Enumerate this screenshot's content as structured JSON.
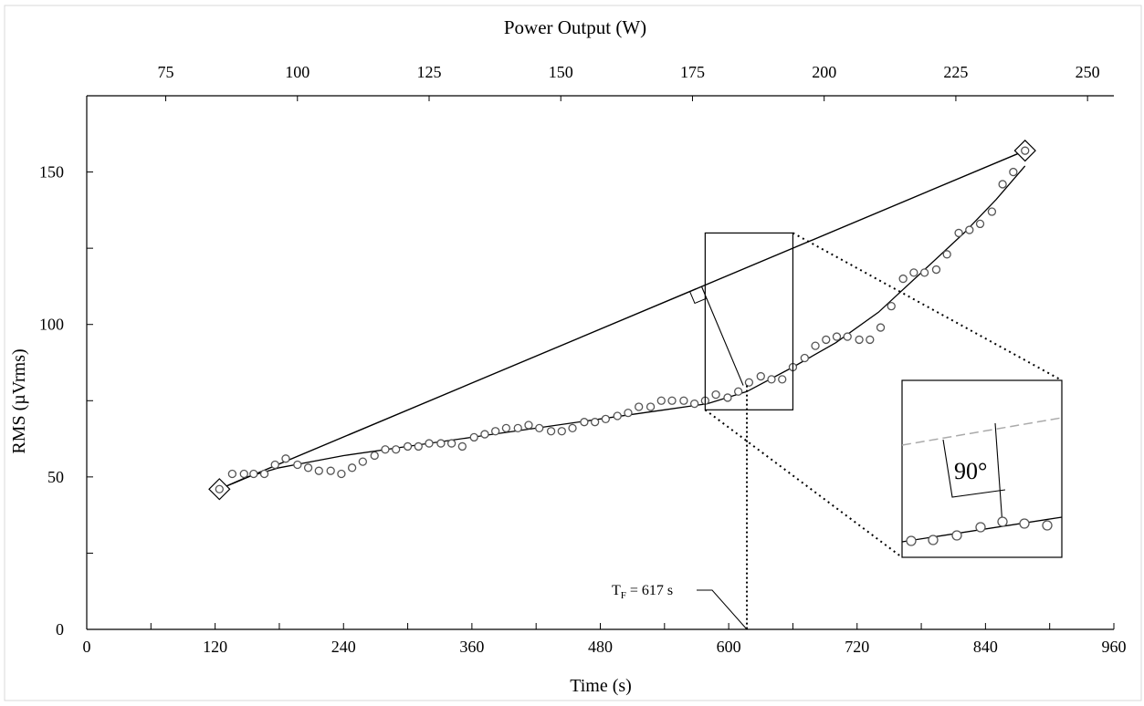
{
  "chart_data": {
    "type": "scatter",
    "xlabel": "Time (s)",
    "ylabel": "RMS (µVrms)",
    "x2label": "Power Output (W)",
    "xlim": [
      0,
      960
    ],
    "ylim": [
      0,
      175
    ],
    "x2lim": [
      60,
      255
    ],
    "xticks": [
      0,
      120,
      240,
      360,
      480,
      600,
      720,
      840,
      960
    ],
    "xticks_minor": [
      60,
      180,
      300,
      420,
      540,
      660,
      780,
      900
    ],
    "yticks": [
      0,
      50,
      100,
      150
    ],
    "yticks_minor": [
      25,
      75,
      125
    ],
    "x2ticks": [
      75,
      100,
      125,
      150,
      175,
      200,
      225,
      250
    ],
    "grid": false,
    "points": [
      {
        "x": 124,
        "y": 46
      },
      {
        "x": 136,
        "y": 51
      },
      {
        "x": 147,
        "y": 51
      },
      {
        "x": 156,
        "y": 51
      },
      {
        "x": 166,
        "y": 51
      },
      {
        "x": 176,
        "y": 54
      },
      {
        "x": 186,
        "y": 56
      },
      {
        "x": 197,
        "y": 54
      },
      {
        "x": 207,
        "y": 53
      },
      {
        "x": 217,
        "y": 52
      },
      {
        "x": 228,
        "y": 52
      },
      {
        "x": 238,
        "y": 51
      },
      {
        "x": 248,
        "y": 53
      },
      {
        "x": 258,
        "y": 55
      },
      {
        "x": 269,
        "y": 57
      },
      {
        "x": 279,
        "y": 59
      },
      {
        "x": 289,
        "y": 59
      },
      {
        "x": 300,
        "y": 60
      },
      {
        "x": 310,
        "y": 60
      },
      {
        "x": 320,
        "y": 61
      },
      {
        "x": 331,
        "y": 61
      },
      {
        "x": 341,
        "y": 61
      },
      {
        "x": 351,
        "y": 60
      },
      {
        "x": 362,
        "y": 63
      },
      {
        "x": 372,
        "y": 64
      },
      {
        "x": 382,
        "y": 65
      },
      {
        "x": 392,
        "y": 66
      },
      {
        "x": 403,
        "y": 66
      },
      {
        "x": 413,
        "y": 67
      },
      {
        "x": 423,
        "y": 66
      },
      {
        "x": 434,
        "y": 65
      },
      {
        "x": 444,
        "y": 65
      },
      {
        "x": 454,
        "y": 66
      },
      {
        "x": 465,
        "y": 68
      },
      {
        "x": 475,
        "y": 68
      },
      {
        "x": 485,
        "y": 69
      },
      {
        "x": 496,
        "y": 70
      },
      {
        "x": 506,
        "y": 71
      },
      {
        "x": 516,
        "y": 73
      },
      {
        "x": 527,
        "y": 73
      },
      {
        "x": 537,
        "y": 75
      },
      {
        "x": 547,
        "y": 75
      },
      {
        "x": 558,
        "y": 75
      },
      {
        "x": 568,
        "y": 74
      },
      {
        "x": 578,
        "y": 75
      },
      {
        "x": 588,
        "y": 77
      },
      {
        "x": 599,
        "y": 76
      },
      {
        "x": 609,
        "y": 78
      },
      {
        "x": 619,
        "y": 81
      },
      {
        "x": 630,
        "y": 83
      },
      {
        "x": 640,
        "y": 82
      },
      {
        "x": 650,
        "y": 82
      },
      {
        "x": 660,
        "y": 86
      },
      {
        "x": 671,
        "y": 89
      },
      {
        "x": 681,
        "y": 93
      },
      {
        "x": 691,
        "y": 95
      },
      {
        "x": 701,
        "y": 96
      },
      {
        "x": 711,
        "y": 96
      },
      {
        "x": 722,
        "y": 95
      },
      {
        "x": 732,
        "y": 95
      },
      {
        "x": 742,
        "y": 99
      },
      {
        "x": 752,
        "y": 106
      },
      {
        "x": 763,
        "y": 115
      },
      {
        "x": 773,
        "y": 117
      },
      {
        "x": 783,
        "y": 117
      },
      {
        "x": 794,
        "y": 118
      },
      {
        "x": 804,
        "y": 123
      },
      {
        "x": 815,
        "y": 130
      },
      {
        "x": 825,
        "y": 131
      },
      {
        "x": 835,
        "y": 133
      },
      {
        "x": 846,
        "y": 137
      },
      {
        "x": 856,
        "y": 146
      },
      {
        "x": 866,
        "y": 150
      },
      {
        "x": 877,
        "y": 157
      }
    ],
    "fit_curve": [
      [
        124,
        46
      ],
      [
        150,
        50
      ],
      [
        180,
        53
      ],
      [
        240,
        57
      ],
      [
        300,
        60
      ],
      [
        360,
        63
      ],
      [
        420,
        66
      ],
      [
        480,
        69
      ],
      [
        540,
        72
      ],
      [
        580,
        74
      ],
      [
        617,
        78
      ],
      [
        660,
        86
      ],
      [
        700,
        94
      ],
      [
        740,
        104
      ],
      [
        780,
        117
      ],
      [
        820,
        130
      ],
      [
        850,
        141
      ],
      [
        877,
        152
      ]
    ],
    "endpoints": [
      {
        "x": 124,
        "y": 46
      },
      {
        "x": 877,
        "y": 157
      }
    ],
    "annotation": {
      "label_main": "T",
      "label_sub": "F",
      "label_rest": " = 617 s",
      "x": 617
    },
    "inset": {
      "angle_label": "90°"
    }
  }
}
